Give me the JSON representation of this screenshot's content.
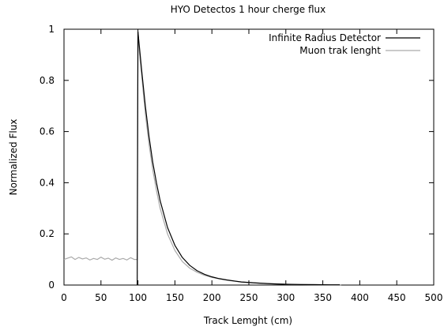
{
  "chart_data": {
    "type": "line",
    "title": "HYO Detectos 1 hour cherge flux",
    "xlabel": "Track Lemght (cm)",
    "ylabel": "Normalized Flux",
    "xlim": [
      0,
      500
    ],
    "ylim": [
      0,
      1
    ],
    "x_ticks": [
      0,
      50,
      100,
      150,
      200,
      250,
      300,
      350,
      400,
      450,
      500
    ],
    "y_ticks": [
      0,
      0.2,
      0.4,
      0.6,
      0.8,
      1
    ],
    "y_tick_labels": [
      "0",
      "0.2",
      "0.4",
      "0.6",
      "0.8",
      "1"
    ],
    "grid": false,
    "legend_position": "top-right",
    "series": [
      {
        "name": "Infinite Radius Detector",
        "color": "#000000",
        "x": [
          99,
          100,
          102,
          105,
          110,
          115,
          120,
          125,
          130,
          140,
          150,
          160,
          170,
          180,
          190,
          200,
          210,
          220,
          230,
          240,
          250,
          260,
          280,
          300,
          320,
          340,
          360,
          373
        ],
        "y": [
          0,
          0.99,
          0.93,
          0.84,
          0.7,
          0.58,
          0.48,
          0.4,
          0.33,
          0.225,
          0.155,
          0.108,
          0.077,
          0.056,
          0.042,
          0.032,
          0.025,
          0.02,
          0.016,
          0.012,
          0.01,
          0.008,
          0.005,
          0.003,
          0.002,
          0.0015,
          0.001,
          0.001
        ]
      },
      {
        "name": "Muon trak lenght",
        "color": "#aaaaaa",
        "x": [
          0,
          5,
          10,
          15,
          20,
          25,
          30,
          35,
          40,
          45,
          50,
          55,
          60,
          65,
          70,
          75,
          80,
          85,
          90,
          95,
          99,
          100,
          102,
          105,
          110,
          115,
          120,
          125,
          130,
          140,
          150,
          160,
          170,
          180,
          190,
          200,
          210,
          220,
          230,
          240,
          250,
          260,
          280,
          300,
          320,
          340,
          360,
          375
        ],
        "y": [
          0.1,
          0.105,
          0.11,
          0.1,
          0.108,
          0.102,
          0.106,
          0.098,
          0.104,
          0.1,
          0.109,
          0.101,
          0.105,
          0.097,
          0.106,
          0.1,
          0.104,
          0.098,
          0.107,
          0.1,
          0.1,
          0.99,
          0.91,
          0.82,
          0.67,
          0.55,
          0.45,
          0.37,
          0.3,
          0.2,
          0.135,
          0.092,
          0.066,
          0.05,
          0.038,
          0.03,
          0.024,
          0.019,
          0.015,
          0.012,
          0.01,
          0.008,
          0.005,
          0.003,
          0.002,
          0.0015,
          0.001,
          0.001
        ]
      }
    ]
  }
}
